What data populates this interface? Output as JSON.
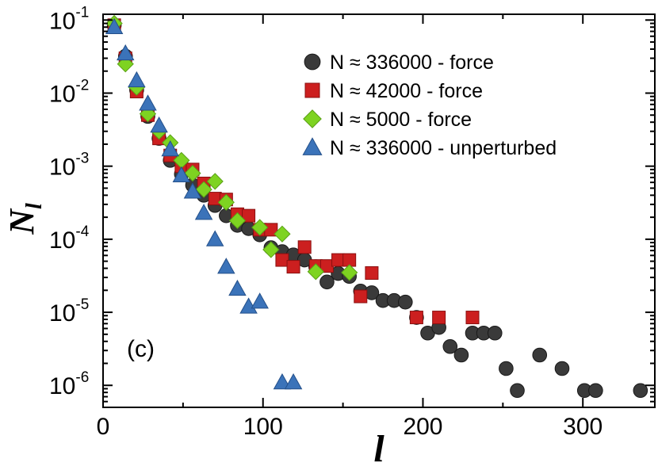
{
  "chart_data": {
    "type": "scatter",
    "title": "",
    "xlabel": "l",
    "ylabel": "N",
    "ylabel_subscript": "l",
    "xscale": "linear",
    "yscale": "log",
    "xlim": [
      0,
      345
    ],
    "ylim": [
      5e-07,
      0.12
    ],
    "x_ticks": [
      0,
      100,
      200,
      300
    ],
    "x_tick_labels": [
      "0",
      "100",
      "200",
      "300"
    ],
    "y_ticks": [
      {
        "value": 0.1,
        "base": "10",
        "exp": "-1"
      },
      {
        "value": 0.01,
        "base": "10",
        "exp": "-2"
      },
      {
        "value": 0.001,
        "base": "10",
        "exp": "-3"
      },
      {
        "value": 0.0001,
        "base": "10",
        "exp": "-4"
      },
      {
        "value": 1e-05,
        "base": "10",
        "exp": "-5"
      },
      {
        "value": 1e-06,
        "base": "10",
        "exp": "-6"
      }
    ],
    "grid": false,
    "legend_position": "top-right",
    "annotation": "(c)",
    "series": [
      {
        "name": "N ≈ 336000 - force",
        "marker": "circle",
        "color": "#3a3a3a",
        "x": [
          7,
          14,
          21,
          28,
          35,
          42,
          49,
          56,
          63,
          70,
          77,
          84,
          91,
          98,
          105,
          112,
          119,
          126,
          133,
          140,
          147,
          154,
          161,
          168,
          175,
          182,
          189,
          196,
          203,
          210,
          217,
          224,
          231,
          238,
          245,
          252,
          259,
          273,
          287,
          301,
          308,
          336
        ],
        "y": [
          0.085,
          0.032,
          0.011,
          0.0048,
          0.0024,
          0.0012,
          0.00078,
          0.00055,
          0.0004,
          0.00029,
          0.00021,
          0.000155,
          0.00014,
          0.000115,
          7.65e-05,
          6.75e-05,
          6.1e-05,
          5.2e-05,
          4.2e-05,
          2.6e-05,
          3.4e-05,
          3.1e-05,
          1.95e-05,
          1.85e-05,
          1.45e-05,
          1.45e-05,
          1.38e-05,
          8.5e-06,
          5.2e-06,
          6.2e-06,
          3.4e-06,
          2.6e-06,
          5.2e-06,
          5.2e-06,
          5.2e-06,
          1.7e-06,
          8.5e-07,
          2.6e-06,
          1.7e-06,
          8.5e-07,
          8.5e-07,
          8.5e-07
        ]
      },
      {
        "name": "N ≈ 42000 - force",
        "marker": "square",
        "color": "#cc1f1f",
        "x": [
          7,
          14,
          21,
          28,
          35,
          42,
          49,
          56,
          63,
          70,
          77,
          84,
          91,
          98,
          105,
          112,
          119,
          126,
          133,
          140,
          147,
          154,
          161,
          168,
          196,
          210,
          231
        ],
        "y": [
          0.085,
          0.03,
          0.0105,
          0.005,
          0.0024,
          0.0014,
          0.001,
          0.0009,
          0.00058,
          0.00036,
          0.00035,
          0.00022,
          0.00021,
          0.000135,
          0.000135,
          5.2e-05,
          4.2e-05,
          7.8e-05,
          4.3e-05,
          4.3e-05,
          5.2e-05,
          5.2e-05,
          1.65e-05,
          3.45e-05,
          8.5e-06,
          8.5e-06,
          8.5e-06
        ]
      },
      {
        "name": "N ≈ 5000 - force",
        "marker": "diamond",
        "color": "#7ed321",
        "x": [
          7,
          14,
          21,
          28,
          35,
          42,
          49,
          56,
          63,
          70,
          77,
          84,
          98,
          105,
          112,
          133,
          154
        ],
        "y": [
          0.09,
          0.025,
          0.012,
          0.0052,
          0.003,
          0.0021,
          0.0012,
          0.0008,
          0.00048,
          0.00062,
          0.00032,
          0.00018,
          0.000145,
          7.2e-05,
          0.000118,
          3.6e-05,
          3.5e-05
        ]
      },
      {
        "name": "N ≈ 336000 - unperturbed",
        "marker": "triangle",
        "color": "#3b73b9",
        "x": [
          7,
          14,
          21,
          28,
          35,
          42,
          49,
          56,
          63,
          70,
          77,
          84,
          91,
          98,
          112,
          119
        ],
        "y": [
          0.08,
          0.035,
          0.015,
          0.0072,
          0.0036,
          0.0017,
          0.00075,
          0.00045,
          0.00023,
          0.0001,
          4.2e-05,
          2.1e-05,
          1.2e-05,
          1.4e-05,
          1.1e-06,
          1.1e-06
        ]
      }
    ]
  }
}
